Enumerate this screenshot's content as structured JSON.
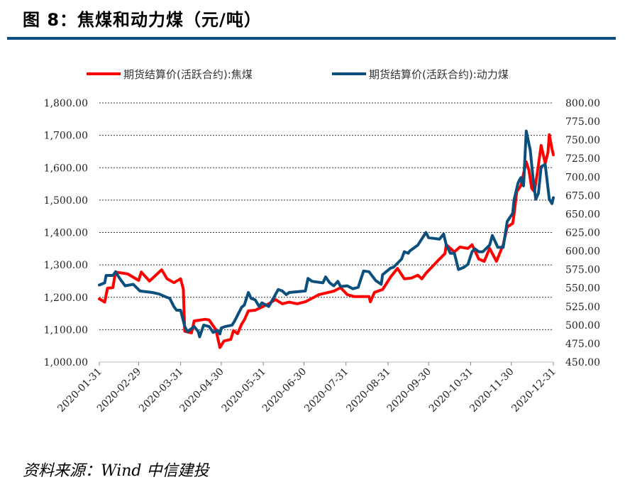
{
  "title": "图 8：焦煤和动力煤（元/吨）",
  "source": "资料来源：Wind 中信建投",
  "chart_data": {
    "type": "line",
    "title": "图 8：焦煤和动力煤（元/吨）",
    "legend_position": "top",
    "grid": true,
    "x_range": [
      "2020-01-31",
      "2020-12-31"
    ],
    "x_ticks": [
      "2020-01-31",
      "2020-02-29",
      "2020-03-31",
      "2020-04-30",
      "2020-05-31",
      "2020-06-30",
      "2020-07-31",
      "2020-08-31",
      "2020-09-30",
      "2020-10-31",
      "2020-11-30",
      "2020-12-31"
    ],
    "y_left": {
      "range": [
        1000,
        1800
      ],
      "ticks": [
        "1,000.00",
        "1,100.00",
        "1,200.00",
        "1,300.00",
        "1,400.00",
        "1,500.00",
        "1,600.00",
        "1,700.00",
        "1,800.00"
      ]
    },
    "y_right": {
      "range": [
        450,
        800
      ],
      "ticks": [
        "450.00",
        "475.00",
        "500.00",
        "525.00",
        "550.00",
        "575.00",
        "600.00",
        "625.00",
        "650.00",
        "675.00",
        "700.00",
        "725.00",
        "750.00",
        "775.00",
        "800.00"
      ]
    },
    "series": [
      {
        "name": "期货结算价(活跃合约):焦煤",
        "axis": "left",
        "color": "#ff0000",
        "points": [
          [
            "2020-01-31",
            1195
          ],
          [
            "2020-02-04",
            1185
          ],
          [
            "2020-02-06",
            1228
          ],
          [
            "2020-02-10",
            1230
          ],
          [
            "2020-02-12",
            1278
          ],
          [
            "2020-02-21",
            1272
          ],
          [
            "2020-02-29",
            1252
          ],
          [
            "2020-03-02",
            1278
          ],
          [
            "2020-03-08",
            1250
          ],
          [
            "2020-03-17",
            1285
          ],
          [
            "2020-03-21",
            1257
          ],
          [
            "2020-03-26",
            1245
          ],
          [
            "2020-03-31",
            1257
          ],
          [
            "2020-04-02",
            1225
          ],
          [
            "2020-04-03",
            1095
          ],
          [
            "2020-04-08",
            1090
          ],
          [
            "2020-04-10",
            1127
          ],
          [
            "2020-04-18",
            1132
          ],
          [
            "2020-04-21",
            1130
          ],
          [
            "2020-04-26",
            1100
          ],
          [
            "2020-04-29",
            1045
          ],
          [
            "2020-05-02",
            1065
          ],
          [
            "2020-05-07",
            1070
          ],
          [
            "2020-05-09",
            1097
          ],
          [
            "2020-05-12",
            1088
          ],
          [
            "2020-05-15",
            1117
          ],
          [
            "2020-05-17",
            1130
          ],
          [
            "2020-05-20",
            1158
          ],
          [
            "2020-05-25",
            1160
          ],
          [
            "2020-05-30",
            1170
          ],
          [
            "2020-06-04",
            1180
          ],
          [
            "2020-06-09",
            1193
          ],
          [
            "2020-06-14",
            1180
          ],
          [
            "2020-06-19",
            1185
          ],
          [
            "2020-06-25",
            1180
          ],
          [
            "2020-07-01",
            1186
          ],
          [
            "2020-07-06",
            1197
          ],
          [
            "2020-07-11",
            1208
          ],
          [
            "2020-07-16",
            1213
          ],
          [
            "2020-07-22",
            1219
          ],
          [
            "2020-07-27",
            1230
          ],
          [
            "2020-08-01",
            1208
          ],
          [
            "2020-08-06",
            1202
          ],
          [
            "2020-08-17",
            1202
          ],
          [
            "2020-08-18",
            1186
          ],
          [
            "2020-08-21",
            1215
          ],
          [
            "2020-08-27",
            1224
          ],
          [
            "2020-09-02",
            1263
          ],
          [
            "2020-09-07",
            1289
          ],
          [
            "2020-09-12",
            1257
          ],
          [
            "2020-09-17",
            1259
          ],
          [
            "2020-09-22",
            1268
          ],
          [
            "2020-09-25",
            1257
          ],
          [
            "2020-09-28",
            1274
          ],
          [
            "2020-10-03",
            1296
          ],
          [
            "2020-10-08",
            1318
          ],
          [
            "2020-10-12",
            1335
          ],
          [
            "2020-10-13",
            1362
          ],
          [
            "2020-10-19",
            1340
          ],
          [
            "2020-10-23",
            1355
          ],
          [
            "2020-10-29",
            1351
          ],
          [
            "2020-11-01",
            1362
          ],
          [
            "2020-11-06",
            1318
          ],
          [
            "2020-11-10",
            1311
          ],
          [
            "2020-11-14",
            1351
          ],
          [
            "2020-11-19",
            1311
          ],
          [
            "2020-11-24",
            1362
          ],
          [
            "2020-11-27",
            1417
          ],
          [
            "2020-12-01",
            1428
          ],
          [
            "2020-12-02",
            1456
          ],
          [
            "2020-12-04",
            1526
          ],
          [
            "2020-12-07",
            1544
          ],
          [
            "2020-12-11",
            1618
          ],
          [
            "2020-12-13",
            1592
          ],
          [
            "2020-12-15",
            1537
          ],
          [
            "2020-12-17",
            1526
          ],
          [
            "2020-12-19",
            1580
          ],
          [
            "2020-12-22",
            1669
          ],
          [
            "2020-12-25",
            1614
          ],
          [
            "2020-12-27",
            1647
          ],
          [
            "2020-12-28",
            1702
          ],
          [
            "2020-12-30",
            1658
          ],
          [
            "2020-12-31",
            1640
          ]
        ]
      },
      {
        "name": "期货结算价(活跃合约):动力煤",
        "axis": "right",
        "color": "#0b4f7c",
        "points": [
          [
            "2020-01-31",
            554
          ],
          [
            "2020-02-04",
            557
          ],
          [
            "2020-02-05",
            567
          ],
          [
            "2020-02-10",
            567
          ],
          [
            "2020-02-12",
            572
          ],
          [
            "2020-02-15",
            563
          ],
          [
            "2020-02-19",
            553
          ],
          [
            "2020-02-25",
            555
          ],
          [
            "2020-03-01",
            546
          ],
          [
            "2020-03-10",
            544
          ],
          [
            "2020-03-15",
            542
          ],
          [
            "2020-03-20",
            538
          ],
          [
            "2020-03-23",
            536
          ],
          [
            "2020-03-26",
            525
          ],
          [
            "2020-03-28",
            520
          ],
          [
            "2020-03-31",
            520
          ],
          [
            "2020-04-03",
            498
          ],
          [
            "2020-04-05",
            491
          ],
          [
            "2020-04-10",
            498
          ],
          [
            "2020-04-13",
            491
          ],
          [
            "2020-04-14",
            484
          ],
          [
            "2020-04-17",
            500
          ],
          [
            "2020-04-21",
            498
          ],
          [
            "2020-04-24",
            490
          ],
          [
            "2020-04-27",
            493
          ],
          [
            "2020-04-29",
            488
          ],
          [
            "2020-04-30",
            496
          ],
          [
            "2020-05-03",
            498
          ],
          [
            "2020-05-08",
            500
          ],
          [
            "2020-05-10",
            506
          ],
          [
            "2020-05-15",
            524
          ],
          [
            "2020-05-17",
            527
          ],
          [
            "2020-05-20",
            544
          ],
          [
            "2020-05-22",
            536
          ],
          [
            "2020-05-25",
            534
          ],
          [
            "2020-05-28",
            525
          ],
          [
            "2020-05-30",
            530
          ],
          [
            "2020-06-04",
            525
          ],
          [
            "2020-06-08",
            538
          ],
          [
            "2020-06-11",
            548
          ],
          [
            "2020-06-14",
            546
          ],
          [
            "2020-06-17",
            541
          ],
          [
            "2020-06-19",
            544
          ],
          [
            "2020-07-01",
            546
          ],
          [
            "2020-07-03",
            563
          ],
          [
            "2020-07-06",
            559
          ],
          [
            "2020-07-14",
            557
          ],
          [
            "2020-07-16",
            565
          ],
          [
            "2020-07-19",
            557
          ],
          [
            "2020-07-22",
            553
          ],
          [
            "2020-07-25",
            559
          ],
          [
            "2020-07-27",
            552
          ],
          [
            "2020-08-01",
            553
          ],
          [
            "2020-08-05",
            549
          ],
          [
            "2020-08-09",
            551
          ],
          [
            "2020-08-13",
            573
          ],
          [
            "2020-08-17",
            572
          ],
          [
            "2020-08-22",
            560
          ],
          [
            "2020-08-26",
            555
          ],
          [
            "2020-08-27",
            568
          ],
          [
            "2020-09-02",
            577
          ],
          [
            "2020-09-04",
            578
          ],
          [
            "2020-09-10",
            589
          ],
          [
            "2020-09-12",
            599
          ],
          [
            "2020-09-15",
            597
          ],
          [
            "2020-09-16",
            600
          ],
          [
            "2020-09-22",
            608
          ],
          [
            "2020-09-28",
            625
          ],
          [
            "2020-09-30",
            618
          ],
          [
            "2020-10-08",
            616
          ],
          [
            "2020-10-11",
            623
          ],
          [
            "2020-10-13",
            608
          ],
          [
            "2020-10-16",
            597
          ],
          [
            "2020-10-19",
            597
          ],
          [
            "2020-10-22",
            575
          ],
          [
            "2020-10-26",
            578
          ],
          [
            "2020-10-29",
            582
          ],
          [
            "2020-11-01",
            599
          ],
          [
            "2020-11-03",
            603
          ],
          [
            "2020-11-06",
            599
          ],
          [
            "2020-11-09",
            599
          ],
          [
            "2020-11-14",
            608
          ],
          [
            "2020-11-16",
            621
          ],
          [
            "2020-11-18",
            613
          ],
          [
            "2020-11-20",
            605
          ],
          [
            "2020-11-24",
            605
          ],
          [
            "2020-11-27",
            640
          ],
          [
            "2020-12-01",
            651
          ],
          [
            "2020-12-02",
            669
          ],
          [
            "2020-12-05",
            692
          ],
          [
            "2020-12-07",
            699
          ],
          [
            "2020-12-09",
            688
          ],
          [
            "2020-12-11",
            762
          ],
          [
            "2020-12-14",
            736
          ],
          [
            "2020-12-16",
            699
          ],
          [
            "2020-12-18",
            670
          ],
          [
            "2020-12-20",
            678
          ],
          [
            "2020-12-22",
            714
          ],
          [
            "2020-12-25",
            717
          ],
          [
            "2020-12-28",
            670
          ],
          [
            "2020-12-30",
            664
          ],
          [
            "2020-12-31",
            672
          ]
        ]
      }
    ]
  }
}
